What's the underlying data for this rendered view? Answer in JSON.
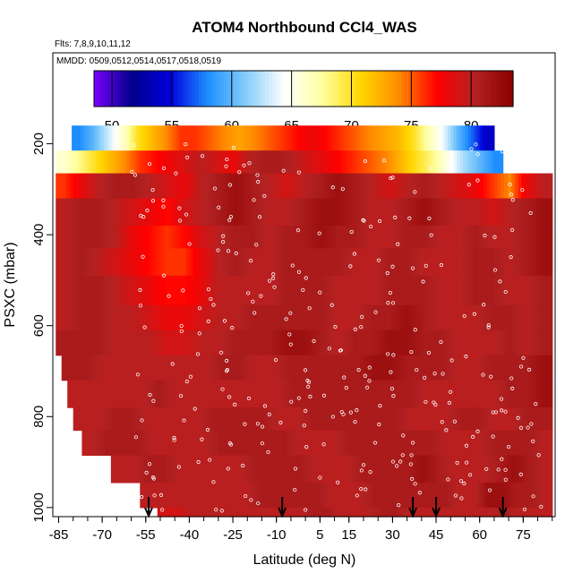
{
  "chart_data": {
    "type": "heatmap",
    "title": "ATOM4 Northbound CCl4_WAS",
    "flights_note": "Flts: 7,8,9,10,11,12",
    "dates_note": "MMDD: 0509,0512,0514,0517,0518,0519",
    "xlabel": "Latitude (deg N)",
    "ylabel": "PSXC (mbar)",
    "xlim": [
      -87,
      86
    ],
    "ylim": [
      1020,
      0
    ],
    "x_ticks": [
      -85,
      -70,
      -55,
      -40,
      -25,
      -10,
      5,
      15,
      30,
      45,
      60,
      75
    ],
    "x_minor_step": 5,
    "y_ticks": [
      200,
      400,
      600,
      800,
      1000
    ],
    "colorbar": {
      "range": [
        48.5,
        83.5
      ],
      "ticks": [
        50,
        55,
        60,
        65,
        70,
        75,
        80
      ],
      "colors": [
        "#7b00ff",
        "#00008b",
        "#0000dd",
        "#1e90ff",
        "#87cefa",
        "#ffffff",
        "#ffffa0",
        "#ffd700",
        "#ff8c00",
        "#ff0000",
        "#b22222",
        "#8b0000"
      ]
    },
    "grid": false,
    "legend": "colorbar-top",
    "rows": [
      {
        "p0": 160,
        "p1": 215,
        "x0": -80.5,
        "x1": 65,
        "v": [
          58,
          60,
          63,
          66,
          70,
          72,
          74,
          76,
          76,
          75,
          74,
          73,
          74,
          75,
          76,
          77,
          78,
          77,
          76,
          75,
          74,
          73,
          72,
          70,
          67,
          64,
          60,
          57,
          54
        ]
      },
      {
        "p0": 215,
        "p1": 265,
        "x0": -86,
        "x1": 68,
        "v": [
          66,
          68,
          70,
          72,
          74,
          76,
          77,
          78,
          79,
          80,
          79,
          78,
          80,
          81,
          81,
          80,
          79,
          78,
          77,
          76,
          75,
          74,
          72,
          70,
          68,
          65,
          62,
          60,
          58
        ]
      },
      {
        "p0": 265,
        "p1": 320,
        "x0": -86,
        "x1": 85,
        "v": [
          76,
          78,
          80,
          81,
          81,
          80,
          79,
          78,
          80,
          81,
          82,
          81,
          80,
          79,
          80,
          81,
          82,
          81,
          80,
          79,
          80,
          81,
          80,
          79,
          78,
          76,
          74,
          78,
          80
        ]
      },
      {
        "p0": 320,
        "p1": 380,
        "x0": -86,
        "x1": 85,
        "v": [
          80,
          81,
          81,
          80,
          79,
          78,
          77,
          79,
          80,
          81,
          82,
          81,
          80,
          80,
          81,
          82,
          82,
          81,
          80,
          80,
          81,
          82,
          81,
          80,
          80,
          79,
          80,
          81,
          82
        ]
      },
      {
        "p0": 380,
        "p1": 430,
        "x0": -86,
        "x1": 85,
        "v": [
          80,
          81,
          81,
          80,
          78,
          77,
          76,
          77,
          79,
          80,
          81,
          81,
          80,
          81,
          81,
          82,
          81,
          81,
          80,
          80,
          81,
          81,
          80,
          80,
          81,
          80,
          80,
          81,
          82
        ]
      },
      {
        "p0": 430,
        "p1": 490,
        "x0": -86,
        "x1": 85,
        "v": [
          80,
          81,
          80,
          79,
          78,
          77,
          76,
          76,
          78,
          80,
          81,
          80,
          80,
          81,
          81,
          81,
          81,
          80,
          80,
          81,
          81,
          80,
          80,
          80,
          81,
          81,
          80,
          81,
          82
        ]
      },
      {
        "p0": 490,
        "p1": 555,
        "x0": -86,
        "x1": 85,
        "v": [
          80,
          81,
          81,
          80,
          79,
          78,
          77,
          77,
          78,
          80,
          80,
          80,
          80,
          81,
          81,
          81,
          80,
          80,
          80,
          81,
          81,
          81,
          80,
          80,
          81,
          81,
          80,
          80,
          81
        ]
      },
      {
        "p0": 555,
        "p1": 610,
        "x0": -86,
        "x1": 85,
        "v": [
          80,
          81,
          81,
          80,
          80,
          79,
          78,
          78,
          79,
          80,
          80,
          81,
          81,
          81,
          81,
          81,
          80,
          80,
          81,
          81,
          82,
          81,
          80,
          80,
          80,
          81,
          81,
          80,
          81
        ]
      },
      {
        "p0": 610,
        "p1": 665,
        "x0": -86,
        "x1": 85,
        "v": [
          81,
          81,
          81,
          80,
          80,
          80,
          79,
          79,
          80,
          80,
          81,
          81,
          81,
          82,
          82,
          81,
          80,
          81,
          81,
          82,
          82,
          81,
          81,
          80,
          80,
          80,
          81,
          80,
          81
        ]
      },
      {
        "p0": 665,
        "p1": 720,
        "x0": -84,
        "x1": 85,
        "v": [
          81,
          81,
          80,
          80,
          80,
          80,
          80,
          80,
          80,
          81,
          81,
          80,
          80,
          81,
          81,
          81,
          81,
          81,
          82,
          82,
          81,
          81,
          81,
          80,
          80,
          81,
          81,
          81,
          82
        ]
      },
      {
        "p0": 720,
        "p1": 780,
        "x0": -82,
        "x1": 85,
        "v": [
          80,
          80,
          80,
          80,
          80,
          81,
          80,
          80,
          80,
          80,
          80,
          80,
          80,
          81,
          81,
          81,
          81,
          81,
          81,
          81,
          81,
          80,
          80,
          80,
          80,
          80,
          81,
          81,
          82
        ]
      },
      {
        "p0": 780,
        "p1": 830,
        "x0": -80,
        "x1": 85,
        "v": [
          80,
          80,
          81,
          81,
          80,
          80,
          80,
          80,
          81,
          81,
          81,
          81,
          80,
          80,
          81,
          81,
          81,
          81,
          81,
          81,
          80,
          80,
          80,
          81,
          81,
          80,
          80,
          81,
          81
        ]
      },
      {
        "p0": 830,
        "p1": 885,
        "x0": -77,
        "x1": 85,
        "v": [
          80,
          81,
          81,
          81,
          80,
          80,
          80,
          80,
          81,
          81,
          81,
          81,
          81,
          80,
          80,
          80,
          81,
          81,
          81,
          81,
          81,
          81,
          80,
          80,
          80,
          81,
          81,
          81,
          80
        ]
      },
      {
        "p0": 885,
        "p1": 945,
        "x0": -67,
        "x1": 85,
        "v": [
          80,
          80,
          81,
          81,
          80,
          80,
          80,
          80,
          80,
          81,
          81,
          81,
          81,
          80,
          80,
          80,
          81,
          81,
          81,
          81,
          82,
          81,
          80,
          80,
          80,
          81,
          82,
          81,
          80
        ]
      },
      {
        "p0": 945,
        "p1": 1000,
        "x0": -57,
        "x1": 85,
        "v": [
          80,
          80,
          80,
          80,
          80,
          80,
          80,
          80,
          81,
          81,
          81,
          81,
          81,
          80,
          80,
          80,
          81,
          81,
          81,
          81,
          81,
          81,
          80,
          80,
          82,
          82,
          81,
          81,
          80
        ]
      },
      {
        "p0": 1000,
        "p1": 1020,
        "x0": -51,
        "x1": 85,
        "v": [
          79,
          79,
          80,
          80,
          80,
          80,
          80,
          80,
          80,
          80,
          80,
          81,
          81,
          80,
          80,
          80,
          81,
          81,
          80,
          80,
          80,
          80,
          80,
          80,
          80,
          81,
          80,
          80,
          80
        ]
      }
    ],
    "arrow_latitudes": [
      -54,
      -8,
      37,
      45,
      68
    ]
  }
}
